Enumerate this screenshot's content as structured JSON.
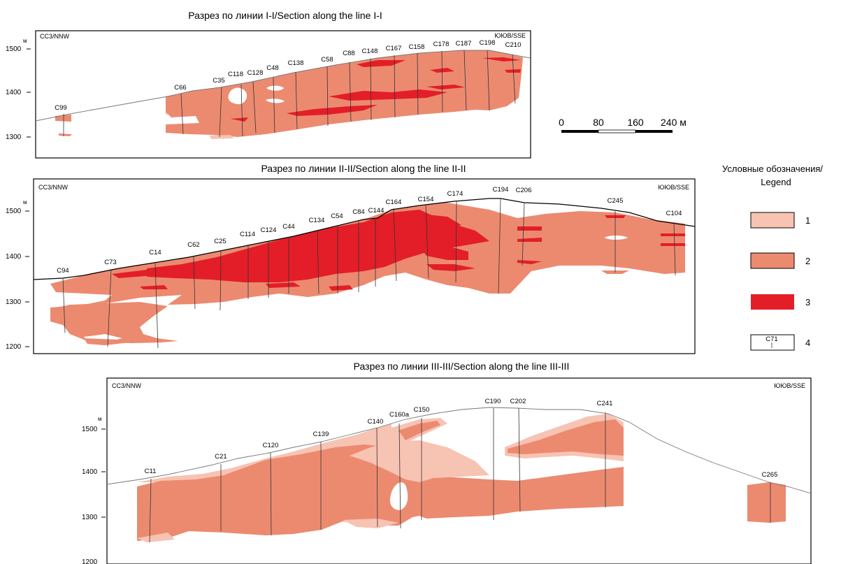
{
  "sections": [
    {
      "title": "Разрез по линии I-I/Section along the line I-I",
      "left_dir": "СС3/NNW",
      "right_dir": "ЮЮВ/SSE",
      "unit": "м",
      "ticks": [
        "1500",
        "1400",
        "1300"
      ],
      "wells": [
        "C99",
        "C66",
        "C35",
        "C118",
        "C128",
        "C48",
        "C138",
        "C58",
        "C88",
        "C148",
        "C167",
        "C158",
        "C178",
        "C187",
        "C198",
        "C210"
      ]
    },
    {
      "title": "Разрез по линии II-II/Section along the line II-II",
      "left_dir": "СС3/NNW",
      "right_dir": "ЮЮВ/SSE",
      "unit": "м",
      "ticks": [
        "1500",
        "1400",
        "1300",
        "1200"
      ],
      "wells": [
        "C94",
        "C73",
        "C14",
        "C62",
        "C25",
        "C114",
        "C124",
        "C44",
        "C134",
        "C54",
        "C84",
        "C144",
        "C164",
        "C154",
        "C174",
        "C194",
        "C206",
        "C245",
        "C104"
      ]
    },
    {
      "title": "Разрез по линии III-III/Section along the line III-III",
      "left_dir": "СС3/NNW",
      "right_dir": "ЮЮВ/SSE",
      "unit": "м",
      "ticks": [
        "1500",
        "1400",
        "1300",
        "1200"
      ],
      "wells": [
        "C11",
        "C21",
        "C120",
        "C139",
        "C140",
        "C160a",
        "C150",
        "C190",
        "C202",
        "C241",
        "C265"
      ]
    }
  ],
  "scale_bar": {
    "labels": [
      "0",
      "80",
      "160",
      "240 м"
    ]
  },
  "legend": {
    "title": "Условные обозначения/ Legend",
    "items": [
      {
        "number": "1",
        "color": "#f7c3b3"
      },
      {
        "number": "2",
        "color": "#ec8a70"
      },
      {
        "number": "3",
        "color": "#e31e28"
      },
      {
        "number": "4",
        "sample_label": "C71"
      }
    ]
  }
}
